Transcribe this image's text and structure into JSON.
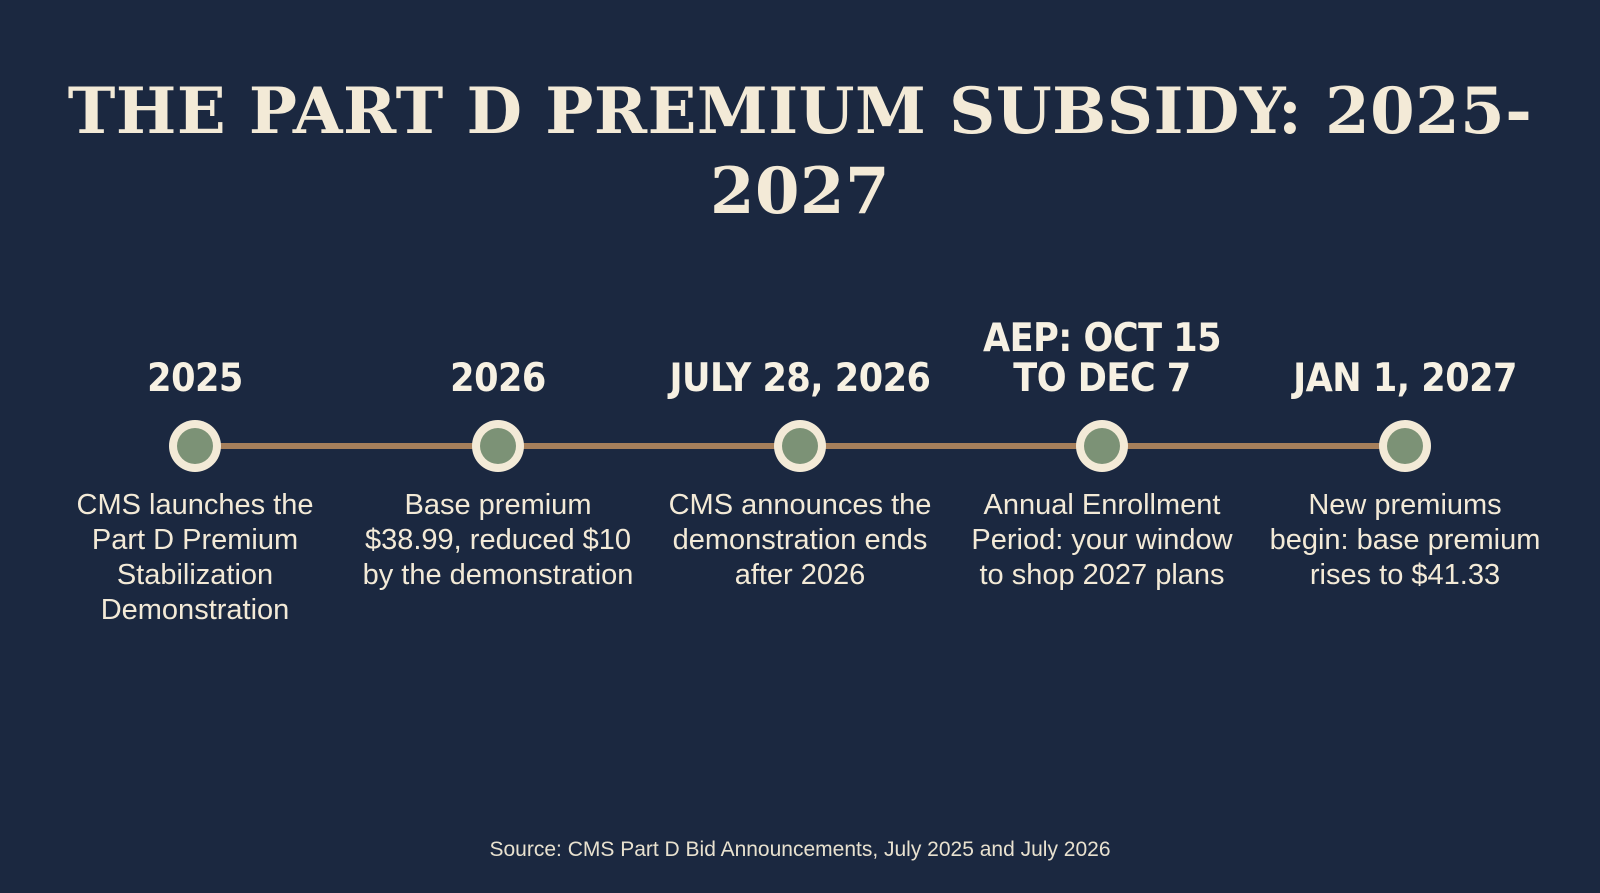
{
  "title": "THE PART D PREMIUM SUBSIDY: 2025-2027",
  "colors": {
    "background": "#1b2840",
    "line": "#a67f5b",
    "marker_ring": "#f3ead7",
    "marker_fill": "#7c9276",
    "text": "#f3ead7"
  },
  "timeline": [
    {
      "date": "2025",
      "description": "CMS launches the Part D Premium Stabilization Demonstration"
    },
    {
      "date": "2026",
      "description": "Base premium $38.99, reduced $10 by the demonstration"
    },
    {
      "date": "JULY 28, 2026",
      "description": "CMS announces the demonstration ends after 2026"
    },
    {
      "date": "AEP: OCT 15\nTO DEC 7",
      "description": "Annual Enrollment Period: your window to shop 2027 plans"
    },
    {
      "date": "JAN 1, 2027",
      "description": "New premiums begin: base premium rises to $41.33"
    }
  ],
  "source": "Source: CMS Part D Bid Announcements, July 2025 and July 2026"
}
